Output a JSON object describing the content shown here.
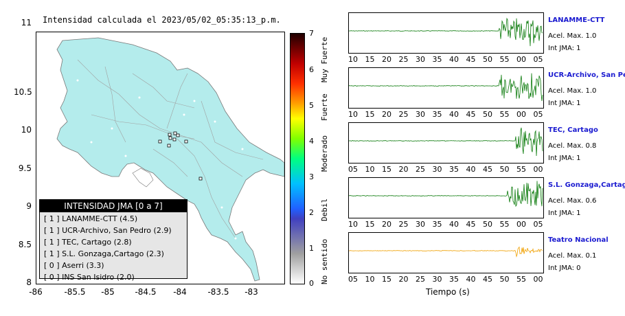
{
  "map": {
    "title": "Intensidad calculada el 2023/05/02_05:35:13_p.m.",
    "yticks": [
      "11",
      "10.5",
      "10",
      "9.5",
      "9",
      "8.5",
      "8"
    ],
    "xticks": [
      "-86",
      "-85.5",
      "-85",
      "-84.5",
      "-84",
      "-83.5",
      "-83"
    ]
  },
  "legend": {
    "title": "INTENSIDAD JMA [0 a 7]",
    "items": [
      "[ 1 ]  LANAMME-CTT (4.5)",
      "[ 1 ]  UCR-Archivo, San Pedro (2.9)",
      "[ 1 ]  TEC, Cartago (2.8)",
      "[ 1 ]  S.L. Gonzaga,Cartago (2.3)",
      "[ 0 ]  Aserri (3.3)",
      "[ 0 ]  INS San Isidro (2.0)"
    ]
  },
  "colorbar": {
    "ticks": [
      "7",
      "6",
      "5",
      "4",
      "3",
      "2",
      "1",
      "0"
    ],
    "labels": [
      "Muy Fuerte",
      "Fuerte",
      "Moderado",
      "Debil",
      "No sentido"
    ]
  },
  "panels": [
    {
      "name": "LANAMME-CTT",
      "accel_label": "Acel. Max. 1.0",
      "int_label": "Int JMA: 1",
      "color": "#0a7a0a",
      "ticks": [
        "10",
        "15",
        "20",
        "25",
        "30",
        "35",
        "40",
        "45",
        "50",
        "55",
        "00",
        "05"
      ]
    },
    {
      "name": "UCR-Archivo, San Pedro",
      "accel_label": "Acel. Max. 1.0",
      "int_label": "Int JMA: 1",
      "color": "#0a7a0a",
      "ticks": [
        "10",
        "15",
        "20",
        "25",
        "30",
        "35",
        "40",
        "45",
        "50",
        "55",
        "00",
        "05"
      ]
    },
    {
      "name": "TEC, Cartago",
      "accel_label": "Acel. Max. 0.8",
      "int_label": "Int JMA: 1",
      "color": "#0a7a0a",
      "ticks": [
        "05",
        "10",
        "15",
        "20",
        "25",
        "30",
        "35",
        "40",
        "45",
        "50",
        "55",
        "00"
      ]
    },
    {
      "name": "S.L. Gonzaga,Cartago",
      "accel_label": "Acel. Max. 0.6",
      "int_label": "Int JMA: 1",
      "color": "#0a7a0a",
      "ticks": [
        "10",
        "15",
        "20",
        "25",
        "30",
        "35",
        "40",
        "45",
        "50",
        "55",
        "00",
        "05"
      ]
    },
    {
      "name": "Teatro Nacional",
      "accel_label": "Acel. Max. 0.1",
      "int_label": "Int JMA: 0",
      "color": "#f0a000",
      "ticks": [
        "05",
        "10",
        "15",
        "20",
        "25",
        "30",
        "35",
        "40",
        "45",
        "50",
        "55",
        "00"
      ]
    }
  ],
  "xaxis_label": "Tiempo (s)"
}
